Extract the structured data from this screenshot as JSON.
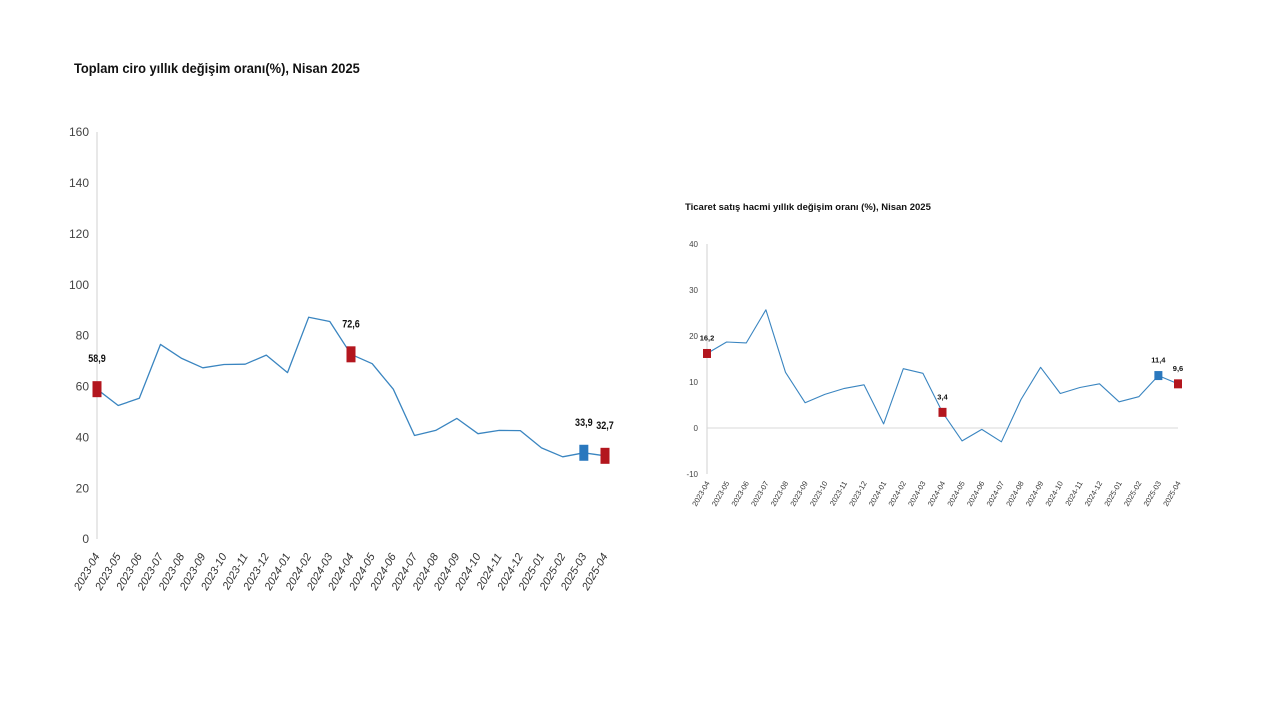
{
  "chart_data": [
    {
      "type": "line",
      "title": "Toplam ciro yıllık değişim oranı(%), Nisan 2025",
      "xlabel": "",
      "ylabel": "",
      "ylim": [
        0,
        160
      ],
      "yticks": [
        0,
        20,
        40,
        60,
        80,
        100,
        120,
        140,
        160
      ],
      "grid": false,
      "categories": [
        "2023-04",
        "2023-05",
        "2023-06",
        "2023-07",
        "2023-08",
        "2023-09",
        "2023-10",
        "2023-11",
        "2023-12",
        "2024-01",
        "2024-02",
        "2024-03",
        "2024-04",
        "2024-05",
        "2024-06",
        "2024-07",
        "2024-08",
        "2024-09",
        "2024-10",
        "2024-11",
        "2024-12",
        "2025-01",
        "2025-02",
        "2025-03",
        "2025-04"
      ],
      "series": [
        {
          "values": [
            58.9,
            52.5,
            55.3,
            76.5,
            71.0,
            67.3,
            68.6,
            68.7,
            72.3,
            65.4,
            87.2,
            85.5,
            72.6,
            68.9,
            58.9,
            40.7,
            42.7,
            47.4,
            41.4,
            42.7,
            42.6,
            35.8,
            32.3,
            33.9,
            32.7
          ],
          "color": "#3a85c0"
        }
      ],
      "highlights": [
        {
          "index": 0,
          "label": "58,9",
          "color": "#b3161e"
        },
        {
          "index": 12,
          "label": "72,6",
          "color": "#b3161e"
        },
        {
          "index": 23,
          "label": "33,9",
          "color": "#2a78be"
        },
        {
          "index": 24,
          "label": "32,7",
          "color": "#b3161e"
        }
      ]
    },
    {
      "type": "line",
      "title": "Ticaret satış hacmi yıllık değişim oranı (%), Nisan 2025",
      "xlabel": "",
      "ylabel": "",
      "ylim": [
        -10,
        40
      ],
      "yticks": [
        -10,
        0,
        10,
        20,
        30,
        40
      ],
      "grid": false,
      "zero_line": true,
      "categories": [
        "2023-04",
        "2023-05",
        "2023-06",
        "2023-07",
        "2023-08",
        "2023-09",
        "2023-10",
        "2023-11",
        "2023-12",
        "2024-01",
        "2024-02",
        "2024-03",
        "2024-04",
        "2024-05",
        "2024-06",
        "2024-07",
        "2024-08",
        "2024-09",
        "2024-10",
        "2024-11",
        "2024-12",
        "2025-01",
        "2025-02",
        "2025-03",
        "2025-04"
      ],
      "series": [
        {
          "values": [
            16.2,
            18.7,
            18.5,
            25.7,
            12.1,
            5.5,
            7.3,
            8.6,
            9.4,
            0.9,
            12.9,
            11.9,
            3.4,
            -2.8,
            -0.3,
            -3.0,
            6.2,
            13.2,
            7.5,
            8.8,
            9.6,
            5.7,
            6.8,
            11.4,
            9.6
          ],
          "color": "#3a85c0"
        }
      ],
      "highlights": [
        {
          "index": 0,
          "label": "16,2",
          "color": "#b3161e"
        },
        {
          "index": 12,
          "label": "3,4",
          "color": "#b3161e"
        },
        {
          "index": 23,
          "label": "11,4",
          "color": "#2a78be"
        },
        {
          "index": 24,
          "label": "9,6",
          "color": "#b3161e"
        }
      ]
    }
  ]
}
